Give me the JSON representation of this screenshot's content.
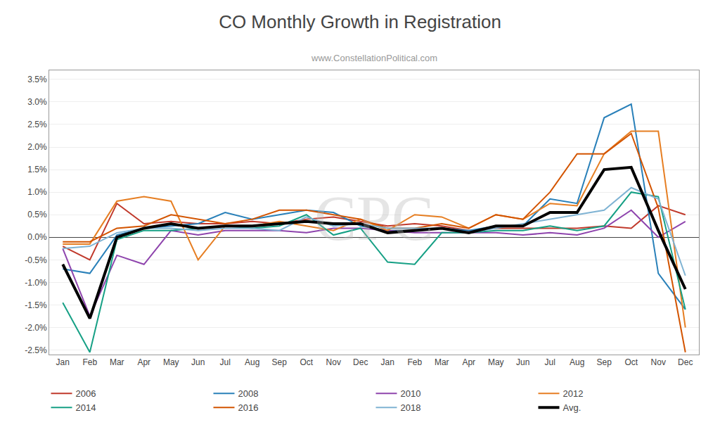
{
  "chart_data": {
    "type": "line",
    "title": "CO Monthly Growth in Registration",
    "subtitle": "www.ConstellationPolitical.com",
    "annotations": [
      "CPC"
    ],
    "categories": [
      "Jan",
      "Feb",
      "Mar",
      "Apr",
      "May",
      "Jun",
      "Jul",
      "Aug",
      "Sep",
      "Oct",
      "Nov",
      "Dec",
      "Jan",
      "Feb",
      "Mar",
      "Apr",
      "May",
      "Jun",
      "Jul",
      "Aug",
      "Sep",
      "Oct",
      "Nov",
      "Dec"
    ],
    "series": [
      {
        "name": "2006",
        "color": "#c0392b",
        "values": [
          -0.002,
          -0.005,
          0.0075,
          0.003,
          0.0035,
          0.003,
          0.003,
          0.0035,
          0.003,
          0.004,
          0.0045,
          0.0035,
          0.0025,
          0.003,
          0.0025,
          0.0015,
          0.002,
          0.002,
          0.002,
          0.002,
          0.0025,
          0.002,
          0.007,
          0.005
        ]
      },
      {
        "name": "2008",
        "color": "#2980b9",
        "values": [
          -0.007,
          -0.008,
          0.0005,
          0.002,
          0.0025,
          0.003,
          0.0055,
          0.004,
          0.005,
          0.006,
          0.0055,
          0.0025,
          0.0015,
          0.0015,
          0.002,
          0.0015,
          0.0025,
          0.0025,
          0.0085,
          0.0075,
          0.0265,
          0.0295,
          -0.008,
          -0.016
        ]
      },
      {
        "name": "2010",
        "color": "#8e44ad",
        "values": [
          -0.0025,
          -0.0175,
          -0.004,
          -0.006,
          0.0015,
          0.0005,
          0.0015,
          0.0015,
          0.0015,
          0.001,
          0.002,
          0.002,
          0.0015,
          0.001,
          0.001,
          0.001,
          0.001,
          0.0005,
          0.001,
          0.0005,
          0.002,
          0.006,
          -0.0,
          0.0035
        ]
      },
      {
        "name": "2012",
        "color": "#e67e22",
        "values": [
          -0.0015,
          -0.0015,
          0.008,
          0.009,
          0.008,
          -0.005,
          0.0025,
          0.0025,
          0.0035,
          0.0025,
          0.0015,
          0.004,
          0.0015,
          0.005,
          0.0045,
          0.002,
          0.005,
          0.004,
          0.0075,
          0.007,
          0.0185,
          0.0235,
          0.0235,
          -0.02
        ]
      },
      {
        "name": "2014",
        "color": "#16a085",
        "values": [
          -0.0145,
          -0.0255,
          -0.0005,
          0.0015,
          0.0015,
          0.002,
          0.0025,
          0.002,
          0.0025,
          0.005,
          0.0005,
          0.002,
          -0.0055,
          -0.006,
          0.001,
          0.001,
          0.0015,
          0.0015,
          0.0025,
          0.0015,
          0.0025,
          0.01,
          0.009,
          -0.016
        ]
      },
      {
        "name": "2016",
        "color": "#d35400",
        "values": [
          -0.001,
          -0.001,
          0.002,
          0.0025,
          0.005,
          0.004,
          0.003,
          0.004,
          0.006,
          0.006,
          0.005,
          0.004,
          0.002,
          0.002,
          0.003,
          0.002,
          0.005,
          0.004,
          0.01,
          0.0185,
          0.0185,
          0.023,
          0.0065,
          -0.0255
        ]
      },
      {
        "name": "2018",
        "color": "#7fb3d3",
        "values": [
          -0.0025,
          -0.002,
          0.001,
          0.002,
          0.002,
          0.0015,
          0.002,
          0.002,
          0.0015,
          0.0045,
          0.0025,
          0.003,
          0.002,
          0.002,
          0.002,
          0.001,
          0.002,
          0.003,
          0.004,
          0.005,
          0.006,
          0.011,
          0.0085,
          -0.0085
        ]
      },
      {
        "name": "Avg.",
        "color": "#000000",
        "values": [
          -0.006,
          -0.018,
          -0.0,
          0.002,
          0.003,
          0.002,
          0.0025,
          0.0025,
          0.003,
          0.0035,
          0.003,
          0.003,
          0.001,
          0.0015,
          0.002,
          0.001,
          0.0025,
          0.0025,
          0.0055,
          0.0055,
          0.015,
          0.0155,
          0.0015,
          -0.0115
        ]
      }
    ],
    "ylim": [
      -0.026,
      0.037
    ],
    "yticks": [
      {
        "value": -0.025,
        "label": "-2.5%"
      },
      {
        "value": -0.02,
        "label": "-2.0%"
      },
      {
        "value": -0.015,
        "label": "-1.5%"
      },
      {
        "value": -0.01,
        "label": "-1.0%"
      },
      {
        "value": -0.005,
        "label": "-0.5%"
      },
      {
        "value": 0.0,
        "label": "0.0%"
      },
      {
        "value": 0.005,
        "label": "0.5%"
      },
      {
        "value": 0.01,
        "label": "1.0%"
      },
      {
        "value": 0.015,
        "label": "1.5%"
      },
      {
        "value": 0.02,
        "label": "2.0%"
      },
      {
        "value": 0.025,
        "label": "2.5%"
      },
      {
        "value": 0.03,
        "label": "3.0%"
      },
      {
        "value": 0.035,
        "label": "3.5%"
      }
    ],
    "grid": true,
    "legend": "bottom"
  }
}
